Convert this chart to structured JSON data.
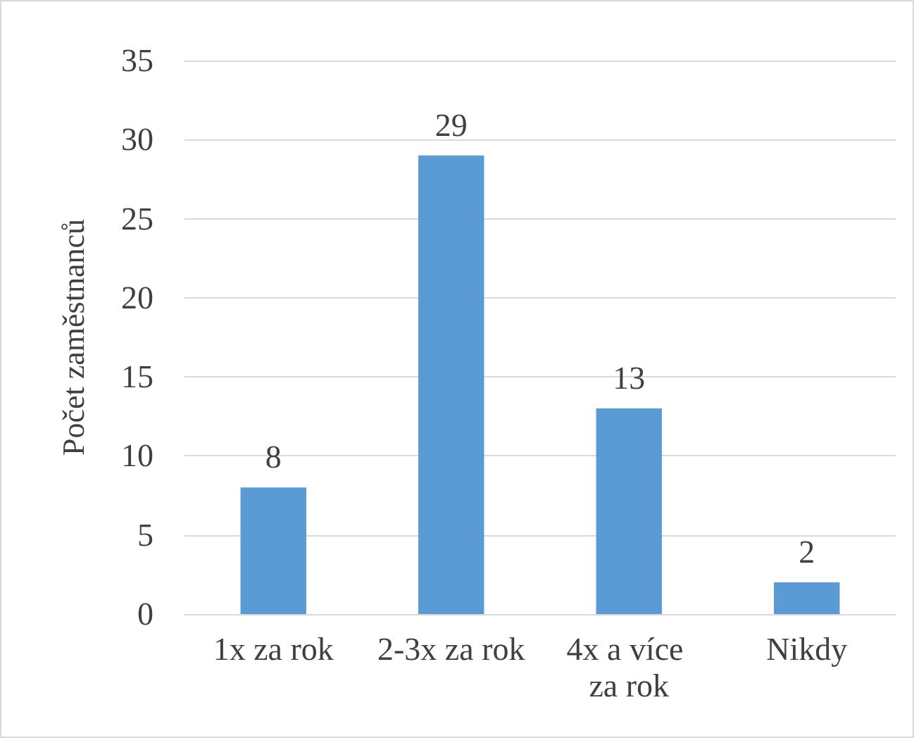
{
  "chart_data": {
    "type": "bar",
    "ylabel": "Počet zaměstnanců",
    "categories": [
      "1x za rok",
      "2-3x za rok",
      "4x a více za rok",
      "Nikdy"
    ],
    "values": [
      8,
      29,
      13,
      2
    ],
    "color": "#5b9bd5",
    "ylim": [
      0,
      35
    ],
    "yticks": [
      0,
      5,
      10,
      15,
      20,
      25,
      30,
      35
    ],
    "grid": "y",
    "data_labels": true
  }
}
